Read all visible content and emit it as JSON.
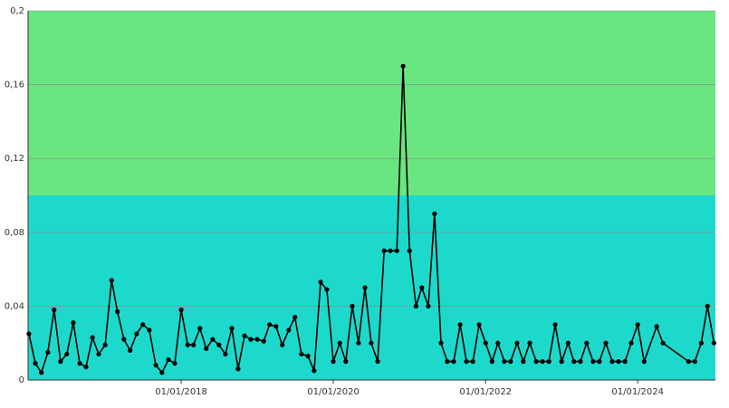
{
  "chart_data": {
    "type": "line",
    "x": [
      "2016-01-01",
      "2016-02-01",
      "2016-03-01",
      "2016-04-01",
      "2016-05-01",
      "2016-06-01",
      "2016-07-01",
      "2016-08-01",
      "2016-09-01",
      "2016-10-01",
      "2016-11-01",
      "2016-12-01",
      "2017-01-01",
      "2017-02-01",
      "2017-03-01",
      "2017-04-01",
      "2017-05-01",
      "2017-06-01",
      "2017-07-01",
      "2017-08-01",
      "2017-09-01",
      "2017-10-01",
      "2017-11-01",
      "2017-12-01",
      "2018-01-01",
      "2018-02-01",
      "2018-03-01",
      "2018-04-01",
      "2018-05-01",
      "2018-06-01",
      "2018-07-01",
      "2018-08-01",
      "2018-09-01",
      "2018-10-01",
      "2018-11-01",
      "2018-12-01",
      "2019-01-01",
      "2019-02-01",
      "2019-03-01",
      "2019-04-01",
      "2019-05-01",
      "2019-06-01",
      "2019-07-01",
      "2019-08-01",
      "2019-09-01",
      "2019-10-01",
      "2019-11-01",
      "2019-12-01",
      "2020-01-01",
      "2020-02-01",
      "2020-03-01",
      "2020-04-01",
      "2020-05-01",
      "2020-06-01",
      "2020-07-01",
      "2020-08-01",
      "2020-09-01",
      "2020-10-01",
      "2020-11-01",
      "2020-12-01",
      "2021-01-01",
      "2021-02-01",
      "2021-03-01",
      "2021-04-01",
      "2021-05-01",
      "2021-06-01",
      "2021-07-01",
      "2021-08-01",
      "2021-09-01",
      "2021-10-01",
      "2021-11-01",
      "2021-12-01",
      "2022-01-01",
      "2022-02-01",
      "2022-03-01",
      "2022-04-01",
      "2022-05-01",
      "2022-06-01",
      "2022-07-01",
      "2022-08-01",
      "2022-09-01",
      "2022-10-01",
      "2022-11-01",
      "2022-12-01",
      "2023-01-01",
      "2023-02-01",
      "2023-03-01",
      "2023-04-01",
      "2023-05-01",
      "2023-06-01",
      "2023-07-01",
      "2023-08-01",
      "2023-09-01",
      "2023-10-01",
      "2023-11-01",
      "2023-12-01",
      "2024-01-01",
      "2024-02-01",
      "2024-04-01",
      "2024-05-01",
      "2024-09-01",
      "2024-10-01",
      "2024-11-01",
      "2024-12-01",
      "2025-01-01"
    ],
    "values": [
      0.025,
      0.009,
      0.004,
      0.015,
      0.038,
      0.01,
      0.014,
      0.031,
      0.009,
      0.007,
      0.023,
      0.014,
      0.019,
      0.054,
      0.037,
      0.022,
      0.016,
      0.025,
      0.03,
      0.027,
      0.008,
      0.004,
      0.011,
      0.009,
      0.038,
      0.019,
      0.019,
      0.028,
      0.017,
      0.022,
      0.019,
      0.014,
      0.028,
      0.006,
      0.024,
      0.022,
      0.022,
      0.021,
      0.03,
      0.029,
      0.019,
      0.027,
      0.034,
      0.014,
      0.013,
      0.005,
      0.053,
      0.049,
      0.01,
      0.02,
      0.01,
      0.04,
      0.02,
      0.05,
      0.02,
      0.01,
      0.07,
      0.07,
      0.07,
      0.17,
      0.07,
      0.04,
      0.05,
      0.04,
      0.09,
      0.02,
      0.01,
      0.01,
      0.03,
      0.01,
      0.01,
      0.03,
      0.02,
      0.01,
      0.02,
      0.01,
      0.01,
      0.02,
      0.01,
      0.02,
      0.01,
      0.01,
      0.01,
      0.03,
      0.01,
      0.02,
      0.01,
      0.01,
      0.02,
      0.01,
      0.01,
      0.02,
      0.01,
      0.01,
      0.01,
      0.02,
      0.03,
      0.01,
      0.029,
      0.02,
      0.01,
      0.01,
      0.02,
      0.04,
      0.02
    ],
    "color": "#000000",
    "xlim": [
      "2015-12-28",
      "2025-01-08"
    ],
    "xticks": [
      {
        "value": "2018-01-01",
        "label": "01/01/2018"
      },
      {
        "value": "2020-01-01",
        "label": "01/01/2020"
      },
      {
        "value": "2022-01-01",
        "label": "01/01/2022"
      },
      {
        "value": "2024-01-01",
        "label": "01/01/2024"
      }
    ],
    "ylim": [
      0,
      0.2
    ],
    "yticks": [
      0,
      {
        "value": 0.04,
        "label": "0,04"
      },
      {
        "value": 0.08,
        "label": "0,08"
      },
      {
        "value": 0.12,
        "label": "0,12"
      },
      {
        "value": 0.16,
        "label": "0,16"
      },
      {
        "value": 0.2,
        "label": "0,2"
      }
    ],
    "grid": true,
    "bands": [
      {
        "from": 0,
        "to": 0.1,
        "color": "#1dd9cc"
      },
      {
        "from": 0.1,
        "to": 0.2,
        "color": "#69e67f"
      }
    ]
  }
}
